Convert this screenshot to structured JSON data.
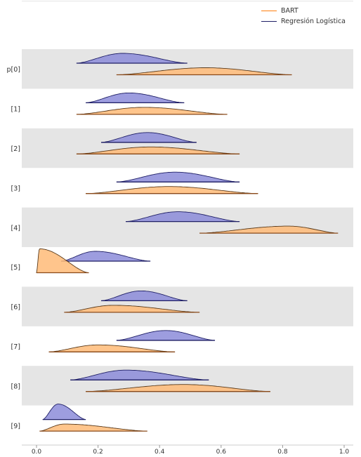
{
  "chart_data": {
    "type": "area",
    "title": "",
    "xlabel": "",
    "ylabel": "",
    "xlim": [
      -0.05,
      1.0
    ],
    "xticks": [
      "0.0",
      "0.2",
      "0.4",
      "0.6",
      "0.8",
      "1.0"
    ],
    "xtick_values": [
      0.0,
      0.2,
      0.4,
      0.6,
      0.8,
      1.0
    ],
    "categories": [
      "p[0]",
      "[1]",
      "[2]",
      "[3]",
      "[4]",
      "[5]",
      "[6]",
      "[7]",
      "[8]",
      "[9]"
    ],
    "grid": false,
    "band_shading": "alternating gray",
    "legend_position": "top-right",
    "series": [
      {
        "name": "BART",
        "line_color": "#ff7f0e",
        "fill_color": "#ffbb78",
        "distributions": [
          {
            "min": 0.26,
            "max": 0.83,
            "mode": 0.55
          },
          {
            "min": 0.13,
            "max": 0.62,
            "mode": 0.35
          },
          {
            "min": 0.13,
            "max": 0.66,
            "mode": 0.37
          },
          {
            "min": 0.16,
            "max": 0.72,
            "mode": 0.43
          },
          {
            "min": 0.53,
            "max": 0.98,
            "mode": 0.82
          },
          {
            "min": 0.0,
            "max": 0.17,
            "mode": 0.01
          },
          {
            "min": 0.09,
            "max": 0.53,
            "mode": 0.25
          },
          {
            "min": 0.04,
            "max": 0.45,
            "mode": 0.2
          },
          {
            "min": 0.16,
            "max": 0.76,
            "mode": 0.48
          },
          {
            "min": 0.01,
            "max": 0.36,
            "mode": 0.09
          }
        ]
      },
      {
        "name": "Regresión Logística",
        "line_color": "#1f1f66",
        "fill_color": "#8c8cd9",
        "distributions": [
          {
            "min": 0.13,
            "max": 0.49,
            "mode": 0.28
          },
          {
            "min": 0.16,
            "max": 0.48,
            "mode": 0.3
          },
          {
            "min": 0.21,
            "max": 0.52,
            "mode": 0.36
          },
          {
            "min": 0.26,
            "max": 0.66,
            "mode": 0.45
          },
          {
            "min": 0.29,
            "max": 0.66,
            "mode": 0.46
          },
          {
            "min": 0.08,
            "max": 0.37,
            "mode": 0.19
          },
          {
            "min": 0.21,
            "max": 0.49,
            "mode": 0.34
          },
          {
            "min": 0.26,
            "max": 0.58,
            "mode": 0.42
          },
          {
            "min": 0.11,
            "max": 0.56,
            "mode": 0.29
          },
          {
            "min": 0.02,
            "max": 0.16,
            "mode": 0.07
          }
        ]
      }
    ]
  }
}
